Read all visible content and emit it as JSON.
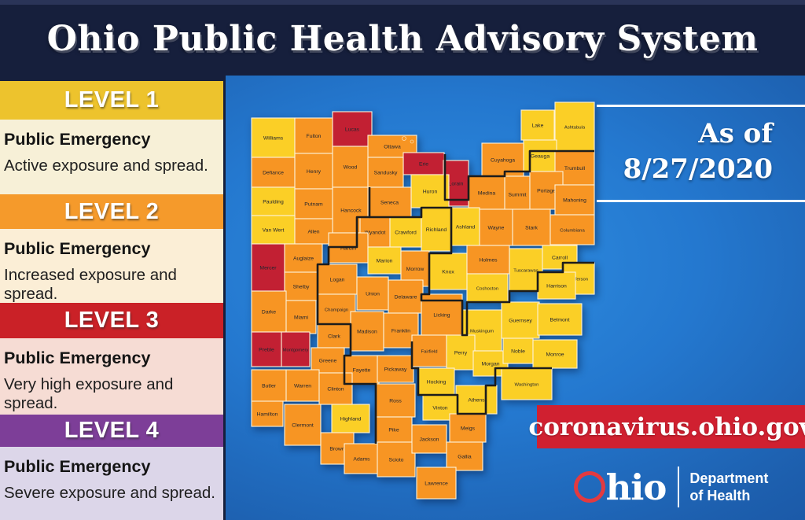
{
  "header": {
    "title": "Ohio Public Health Advisory System"
  },
  "levels": [
    {
      "name": "LEVEL 1",
      "heading": "Public Emergency",
      "description": "Active exposure and spread.",
      "band_color": "#edc32d",
      "body_color": "#f7f0d7"
    },
    {
      "name": "LEVEL 2",
      "heading": "Public Emergency",
      "description": "Increased exposure and spread.",
      "band_color": "#f59a2b",
      "body_color": "#fbeed6"
    },
    {
      "name": "LEVEL 3",
      "heading": "Public Emergency",
      "description": "Very high exposure and spread.",
      "band_color": "#ca2127",
      "body_color": "#f6dcd4"
    },
    {
      "name": "LEVEL 4",
      "heading": "Public Emergency",
      "description": "Severe exposure and spread.",
      "band_color": "#7d3e98",
      "body_color": "#dcd6e9"
    }
  ],
  "as_of": {
    "line1": "As of",
    "line2": "8/27/2020"
  },
  "footer": {
    "url": "coronavirus.ohio.gov",
    "logo_text": "hio",
    "dept_line1": "Department",
    "dept_line2": "of Health",
    "banner_color": "#d02030",
    "logo_ring_color": "#e23a40"
  },
  "map": {
    "level_colors": {
      "1": "#fbcf26",
      "2": "#f79523",
      "3": "#c22033"
    },
    "county_border_color": "#fdf3d9",
    "region_border_color": "#1c1c1c",
    "water_color_top": "#2f8fe2",
    "water_color_bottom": "#174f9c",
    "counties": [
      [
        "Williams",
        1,
        2,
        38,
        55,
        50
      ],
      [
        "Fulton",
        2,
        57,
        38,
        48,
        45
      ],
      [
        "Lucas",
        3,
        105,
        30,
        50,
        44
      ],
      [
        "Ottawa",
        2,
        150,
        60,
        62,
        28
      ],
      [
        "Erie",
        3,
        195,
        82,
        52,
        28
      ],
      [
        "Lake",
        1,
        345,
        28,
        42,
        38
      ],
      [
        "Ashtabula",
        1,
        388,
        18,
        50,
        62
      ],
      [
        "Geauga",
        1,
        348,
        66,
        42,
        40
      ],
      [
        "Cuyahoga",
        2,
        295,
        70,
        53,
        42
      ],
      [
        "Trumbull",
        2,
        388,
        80,
        50,
        43
      ],
      [
        "Lorain",
        3,
        246,
        92,
        32,
        58
      ],
      [
        "Defiance",
        2,
        2,
        88,
        55,
        38
      ],
      [
        "Henry",
        2,
        57,
        83,
        48,
        45
      ],
      [
        "Wood",
        2,
        105,
        74,
        45,
        52
      ],
      [
        "Sandusky",
        2,
        150,
        88,
        45,
        38
      ],
      [
        "Huron",
        1,
        205,
        110,
        48,
        42
      ],
      [
        "Medina",
        2,
        278,
        112,
        46,
        42
      ],
      [
        "Summit",
        2,
        324,
        112,
        32,
        46
      ],
      [
        "Portage",
        2,
        356,
        106,
        42,
        48
      ],
      [
        "Mahoning",
        2,
        388,
        123,
        50,
        38
      ],
      [
        "Paulding",
        1,
        2,
        126,
        55,
        36
      ],
      [
        "Putnam",
        2,
        57,
        128,
        48,
        38
      ],
      [
        "Hancock",
        2,
        105,
        126,
        47,
        58
      ],
      [
        "Seneca",
        2,
        150,
        126,
        55,
        38
      ],
      [
        "Van Wert",
        1,
        2,
        162,
        55,
        36
      ],
      [
        "Allen",
        2,
        57,
        166,
        48,
        32
      ],
      [
        "Wyandot",
        2,
        140,
        164,
        38,
        38
      ],
      [
        "Crawford",
        1,
        178,
        164,
        40,
        38
      ],
      [
        "Richland",
        1,
        218,
        152,
        38,
        55
      ],
      [
        "Ashland",
        1,
        256,
        152,
        36,
        48
      ],
      [
        "Wayne",
        2,
        292,
        154,
        42,
        46
      ],
      [
        "Stark",
        2,
        334,
        154,
        48,
        46
      ],
      [
        "Columbiana",
        2,
        382,
        161,
        56,
        38
      ],
      [
        "Mercer",
        3,
        2,
        198,
        42,
        60
      ],
      [
        "Auglaize",
        2,
        44,
        198,
        48,
        36
      ],
      [
        "Hardin",
        2,
        100,
        184,
        50,
        38
      ],
      [
        "Marion",
        1,
        150,
        202,
        42,
        34
      ],
      [
        "Morrow",
        2,
        192,
        207,
        36,
        45
      ],
      [
        "Knox",
        1,
        228,
        210,
        48,
        46
      ],
      [
        "Holmes",
        2,
        276,
        200,
        54,
        36
      ],
      [
        "Tuscarawas",
        1,
        330,
        204,
        42,
        54
      ],
      [
        "Carroll",
        1,
        372,
        200,
        44,
        30
      ],
      [
        "Jefferson",
        1,
        398,
        222,
        40,
        40
      ],
      [
        "Harrison",
        1,
        366,
        234,
        48,
        34
      ],
      [
        "Shelby",
        2,
        44,
        234,
        42,
        36
      ],
      [
        "Logan",
        2,
        86,
        224,
        50,
        38
      ],
      [
        "Union",
        2,
        136,
        240,
        40,
        42
      ],
      [
        "Delaware",
        2,
        176,
        244,
        44,
        42
      ],
      [
        "Darke",
        2,
        2,
        258,
        44,
        52
      ],
      [
        "Miami",
        2,
        46,
        270,
        38,
        42
      ],
      [
        "Champaign",
        2,
        86,
        262,
        48,
        38
      ],
      [
        "Clark",
        2,
        86,
        300,
        42,
        30
      ],
      [
        "Madison",
        2,
        128,
        284,
        42,
        50
      ],
      [
        "Franklin",
        2,
        170,
        286,
        44,
        44
      ],
      [
        "Licking",
        2,
        218,
        262,
        52,
        52
      ],
      [
        "Coshocton",
        1,
        276,
        236,
        52,
        36
      ],
      [
        "Guernsey",
        1,
        320,
        272,
        48,
        46
      ],
      [
        "Muskingum",
        1,
        270,
        282,
        50,
        52
      ],
      [
        "Belmont",
        1,
        366,
        274,
        56,
        40
      ],
      [
        "Preble",
        3,
        2,
        310,
        38,
        44
      ],
      [
        "Montgomery",
        3,
        40,
        310,
        36,
        44
      ],
      [
        "Greene",
        2,
        78,
        330,
        42,
        32
      ],
      [
        "Fayette",
        2,
        120,
        340,
        44,
        36
      ],
      [
        "Pickaway",
        2,
        162,
        340,
        46,
        34
      ],
      [
        "Fairfield",
        2,
        206,
        314,
        44,
        40
      ],
      [
        "Perry",
        1,
        250,
        314,
        36,
        44
      ],
      [
        "Morgan",
        1,
        284,
        334,
        44,
        32
      ],
      [
        "Noble",
        1,
        322,
        318,
        38,
        32
      ],
      [
        "Monroe",
        1,
        360,
        320,
        56,
        36
      ],
      [
        "Butler",
        2,
        2,
        358,
        44,
        40
      ],
      [
        "Warren",
        2,
        46,
        358,
        42,
        40
      ],
      [
        "Clinton",
        2,
        88,
        362,
        42,
        40
      ],
      [
        "Highland",
        1,
        104,
        402,
        48,
        36
      ],
      [
        "Ross",
        2,
        160,
        376,
        50,
        42
      ],
      [
        "Hocking",
        1,
        214,
        356,
        46,
        34
      ],
      [
        "Athens",
        1,
        262,
        378,
        52,
        36
      ],
      [
        "Washington",
        1,
        320,
        356,
        64,
        40
      ],
      [
        "Hamilton",
        2,
        2,
        398,
        40,
        32
      ],
      [
        "Clermont",
        2,
        44,
        402,
        46,
        52
      ],
      [
        "Brown",
        2,
        90,
        438,
        42,
        40
      ],
      [
        "Adams",
        2,
        120,
        452,
        44,
        38
      ],
      [
        "Pike",
        2,
        160,
        418,
        46,
        32
      ],
      [
        "Scioto",
        2,
        162,
        450,
        48,
        44
      ],
      [
        "Jackson",
        2,
        206,
        428,
        44,
        36
      ],
      [
        "Vinton",
        1,
        220,
        390,
        44,
        32
      ],
      [
        "Meigs",
        2,
        254,
        414,
        46,
        36
      ],
      [
        "Gallia",
        2,
        250,
        450,
        46,
        36
      ],
      [
        "Lawrence",
        2,
        212,
        482,
        50,
        40
      ]
    ],
    "region_borders": [
      "M248,84 L248,142 L278,142 L278,112 L324,112 L324,106 L356,106 L356,80 L438,80",
      "M152,126 L152,164 L136,164 L136,202 L100,202 L100,224 L86,224 L86,300 L128,300 L128,340 L120,340 L120,376 L160,376 L160,452",
      "M152,164 L218,164 L218,152 L256,152 L256,210 L228,210 L228,262 L218,262 L218,270 L270,270 L270,314 L276,314 L276,272 L330,272 L330,258 L366,258 L366,234 L398,234 L398,222 L438,222",
      "M206,322 L206,356 L214,356 L214,390 L264,390 L264,414 L300,414 L300,378 L312,378 L312,356 L384,356"
    ],
    "islands": [
      [
        196,
        64,
        2.5
      ],
      [
        206,
        68,
        2
      ]
    ]
  }
}
